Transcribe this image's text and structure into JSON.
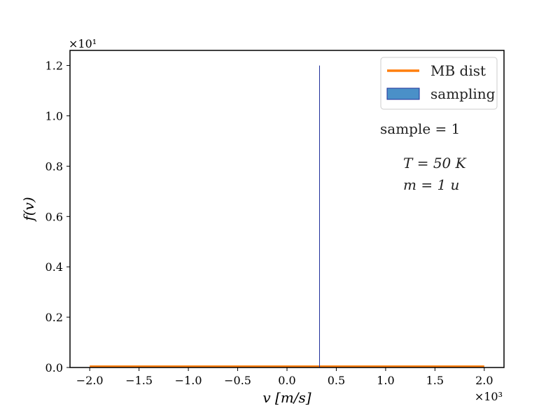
{
  "chart_data": {
    "type": "line",
    "title": "",
    "xlabel": "v [m/s]",
    "ylabel": "f(v)",
    "x_multiplier": "×10³",
    "y_multiplier": "×10¹",
    "xlim": [
      -2.2,
      2.2
    ],
    "ylim": [
      0,
      1.26
    ],
    "xticks": [
      -2.0,
      -1.5,
      -1.0,
      -0.5,
      0.0,
      0.5,
      1.0,
      1.5,
      2.0
    ],
    "xtick_labels": [
      "−2.0",
      "−1.5",
      "−1.0",
      "−0.5",
      "0.0",
      "0.5",
      "1.0",
      "1.5",
      "2.0"
    ],
    "yticks": [
      0.0,
      0.2,
      0.4,
      0.6,
      0.8,
      1.0,
      1.2
    ],
    "ytick_labels": [
      "0.0",
      "0.2",
      "0.4",
      "0.6",
      "0.8",
      "1.0",
      "1.2"
    ],
    "grid": false,
    "legend_position": "top-right",
    "series": [
      {
        "name": "MB dist",
        "type": "line",
        "color": "#ff7f0e",
        "x": [
          -2.0,
          2.0
        ],
        "y": [
          0.004,
          0.004
        ]
      },
      {
        "name": "sampling",
        "type": "bar",
        "color": "#4a90c8",
        "edge_color": "#1f2f9a",
        "x": [
          0.33
        ],
        "y": [
          1.2
        ]
      }
    ],
    "annotations": [
      {
        "text": "sample = 1"
      },
      {
        "text": "T = 50 K"
      },
      {
        "text": "m = 1 u"
      }
    ]
  }
}
